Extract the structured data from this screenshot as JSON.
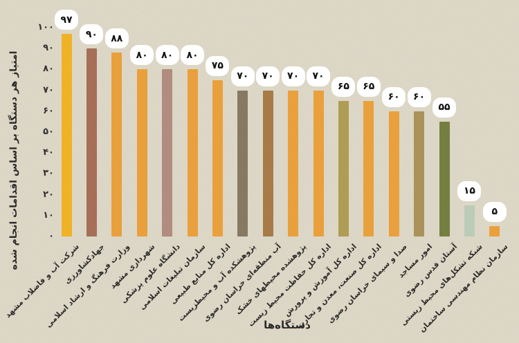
{
  "chart_data": {
    "type": "bar",
    "title": "",
    "xlabel": "دستگاه‌ها",
    "ylabel": "امتیاز هر دستگاه بر اساس اقدامات انجام شده",
    "ylim": [
      0,
      100
    ],
    "grid": false,
    "legend": false,
    "ytick_values": [
      0,
      10,
      20,
      30,
      40,
      50,
      60,
      70,
      80,
      90,
      100
    ],
    "ytick_labels": [
      "۰",
      "۱۰",
      "۲۰",
      "۳۰",
      "۴۰",
      "۵۰",
      "۶۰",
      "۷۰",
      "۸۰",
      "۹۰",
      "۱۰۰"
    ],
    "categories": [
      "شرکت آب و فاضلاب مشهد",
      "جهادکشاورزی",
      "وزارت فرهنگ و ارشاد اسلامی",
      "شهرداری مشهد",
      "دانشگاه علوم پزشکی",
      "سازمان تبلیغات اسلامی",
      "اداره کل منابع طبیعی",
      "پژوهشکده آب و محیطزیست",
      "آب منطقه‌ای خراسان رضوی",
      "پژوهشده محیطهای خشک",
      "اداره کل حفاظت محیط زیست",
      "اداره کل آموزش و پرورش",
      "اداره کل صنعت، معدن و تجارت",
      "صدا و سیمای خراسان رضوی",
      "امور مساجد",
      "آستان قدس رضوی",
      "شبکه تشکل‌های محیط زیستی",
      "سازمان نظام مهندسی ساختمان"
    ],
    "values": [
      97,
      90,
      88,
      80,
      80,
      80,
      75,
      70,
      70,
      70,
      70,
      65,
      65,
      60,
      60,
      55,
      15,
      5
    ],
    "value_labels": [
      "۹۷",
      "۹۰",
      "۸۸",
      "۸۰",
      "۸۰",
      "۸۰",
      "۷۵",
      "۷۰",
      "۷۰",
      "۷۰",
      "۷۰",
      "۶۵",
      "۶۵",
      "۶۰",
      "۶۰",
      "۵۵",
      "۱۵",
      "۵"
    ],
    "bar_colors": [
      "#FBB617",
      "#A6684F",
      "#F4A130",
      "#F4A130",
      "#B4897D",
      "#F4A130",
      "#F4A130",
      "#83735C",
      "#A8763C",
      "#F4A130",
      "#F4A130",
      "#B29C4B",
      "#F4A130",
      "#F4A130",
      "#AB9151",
      "#6E7A33",
      "#BFD3BF",
      "#F4A130"
    ]
  },
  "colors": {
    "background": "#E5DFCE",
    "bubble_background": "#FFFFFF",
    "text": "#1B1B1B"
  }
}
